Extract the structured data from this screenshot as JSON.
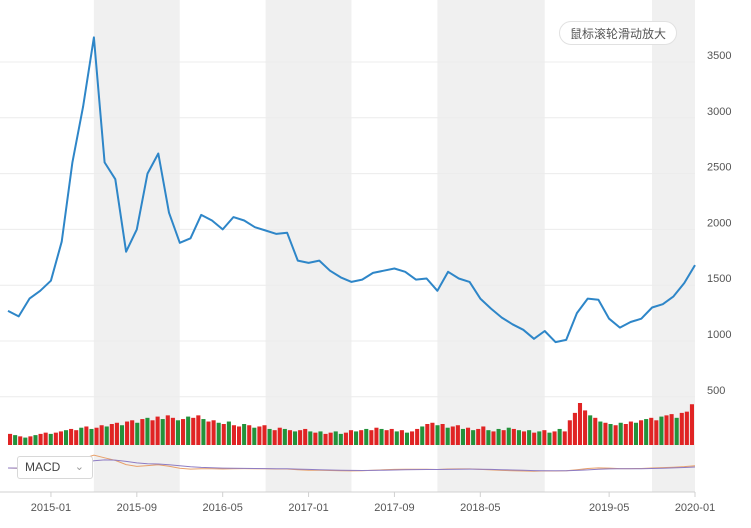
{
  "zoom_hint": "鼠标滚轮滑动放大",
  "indicator": {
    "selected": "MACD",
    "chevron_icon": "chevron-down-icon"
  },
  "colors": {
    "price_line": "#2e86c8",
    "up_volume": "#e02424",
    "down_volume": "#23923b",
    "band": "#f0f0f0",
    "grid": "#ececec",
    "axis_text": "#555555"
  },
  "chart_data": {
    "type": "line",
    "series": [
      {
        "values": [
          {
            "x": "2014-09",
            "y": 1270
          },
          {
            "x": "2014-10",
            "y": 1220
          },
          {
            "x": "2014-11",
            "y": 1380
          },
          {
            "x": "2014-12",
            "y": 1450
          },
          {
            "x": "2015-01",
            "y": 1540
          },
          {
            "x": "2015-02",
            "y": 1890
          },
          {
            "x": "2015-03",
            "y": 2600
          },
          {
            "x": "2015-04",
            "y": 3100
          },
          {
            "x": "2015-05",
            "y": 3720
          },
          {
            "x": "2015-06",
            "y": 2600
          },
          {
            "x": "2015-07",
            "y": 2450
          },
          {
            "x": "2015-08",
            "y": 1800
          },
          {
            "x": "2015-09",
            "y": 2000
          },
          {
            "x": "2015-10",
            "y": 2500
          },
          {
            "x": "2015-11",
            "y": 2680
          },
          {
            "x": "2015-12",
            "y": 2150
          },
          {
            "x": "2016-01",
            "y": 1880
          },
          {
            "x": "2016-02",
            "y": 1920
          },
          {
            "x": "2016-03",
            "y": 2130
          },
          {
            "x": "2016-04",
            "y": 2080
          },
          {
            "x": "2016-05",
            "y": 2000
          },
          {
            "x": "2016-06",
            "y": 2110
          },
          {
            "x": "2016-07",
            "y": 2080
          },
          {
            "x": "2016-08",
            "y": 2020
          },
          {
            "x": "2016-09",
            "y": 1990
          },
          {
            "x": "2016-10",
            "y": 1960
          },
          {
            "x": "2016-11",
            "y": 1970
          },
          {
            "x": "2016-12",
            "y": 1720
          },
          {
            "x": "2017-01",
            "y": 1700
          },
          {
            "x": "2017-02",
            "y": 1720
          },
          {
            "x": "2017-03",
            "y": 1630
          },
          {
            "x": "2017-04",
            "y": 1570
          },
          {
            "x": "2017-05",
            "y": 1530
          },
          {
            "x": "2017-06",
            "y": 1550
          },
          {
            "x": "2017-07",
            "y": 1610
          },
          {
            "x": "2017-08",
            "y": 1630
          },
          {
            "x": "2017-09",
            "y": 1650
          },
          {
            "x": "2017-10",
            "y": 1620
          },
          {
            "x": "2017-11",
            "y": 1550
          },
          {
            "x": "2017-12",
            "y": 1560
          },
          {
            "x": "2018-01",
            "y": 1450
          },
          {
            "x": "2018-02",
            "y": 1620
          },
          {
            "x": "2018-03",
            "y": 1560
          },
          {
            "x": "2018-04",
            "y": 1530
          },
          {
            "x": "2018-05",
            "y": 1380
          },
          {
            "x": "2018-06",
            "y": 1290
          },
          {
            "x": "2018-07",
            "y": 1210
          },
          {
            "x": "2018-08",
            "y": 1150
          },
          {
            "x": "2018-09",
            "y": 1100
          },
          {
            "x": "2018-10",
            "y": 1020
          },
          {
            "x": "2018-11",
            "y": 1090
          },
          {
            "x": "2018-12",
            "y": 990
          },
          {
            "x": "2019-01",
            "y": 1010
          },
          {
            "x": "2019-02",
            "y": 1250
          },
          {
            "x": "2019-03",
            "y": 1380
          },
          {
            "x": "2019-04",
            "y": 1370
          },
          {
            "x": "2019-05",
            "y": 1200
          },
          {
            "x": "2019-06",
            "y": 1120
          },
          {
            "x": "2019-07",
            "y": 1170
          },
          {
            "x": "2019-08",
            "y": 1200
          },
          {
            "x": "2019-09",
            "y": 1300
          },
          {
            "x": "2019-10",
            "y": 1330
          },
          {
            "x": "2019-11",
            "y": 1400
          },
          {
            "x": "2019-12",
            "y": 1520
          },
          {
            "x": "2020-01",
            "y": 1680
          }
        ]
      }
    ],
    "y_ticks": [
      "500",
      "1000",
      "1500",
      "2000",
      "2500",
      "3000",
      "3500"
    ],
    "x_ticks": [
      "2015-01",
      "2015-09",
      "2016-05",
      "2017-01",
      "2017-09",
      "2018-05",
      "2019-05",
      "2020-01"
    ],
    "ylim": [
      0,
      3800
    ],
    "grid": true,
    "volume": [
      [
        9,
        "u"
      ],
      [
        8,
        "d"
      ],
      [
        7,
        "u"
      ],
      [
        6,
        "d"
      ],
      [
        7,
        "u"
      ],
      [
        8,
        "d"
      ],
      [
        9,
        "u"
      ],
      [
        10,
        "u"
      ],
      [
        9,
        "d"
      ],
      [
        10,
        "u"
      ],
      [
        11,
        "u"
      ],
      [
        12,
        "d"
      ],
      [
        13,
        "u"
      ],
      [
        12,
        "u"
      ],
      [
        14,
        "d"
      ],
      [
        15,
        "u"
      ],
      [
        13,
        "d"
      ],
      [
        14,
        "u"
      ],
      [
        16,
        "u"
      ],
      [
        15,
        "d"
      ],
      [
        17,
        "u"
      ],
      [
        18,
        "u"
      ],
      [
        16,
        "d"
      ],
      [
        19,
        "u"
      ],
      [
        20,
        "u"
      ],
      [
        18,
        "d"
      ],
      [
        21,
        "u"
      ],
      [
        22,
        "d"
      ],
      [
        20,
        "u"
      ],
      [
        23,
        "u"
      ],
      [
        21,
        "d"
      ],
      [
        24,
        "u"
      ],
      [
        22,
        "u"
      ],
      [
        20,
        "d"
      ],
      [
        21,
        "u"
      ],
      [
        23,
        "d"
      ],
      [
        22,
        "u"
      ],
      [
        24,
        "u"
      ],
      [
        21,
        "d"
      ],
      [
        19,
        "u"
      ],
      [
        20,
        "u"
      ],
      [
        18,
        "d"
      ],
      [
        17,
        "u"
      ],
      [
        19,
        "d"
      ],
      [
        16,
        "u"
      ],
      [
        15,
        "u"
      ],
      [
        17,
        "d"
      ],
      [
        16,
        "u"
      ],
      [
        14,
        "d"
      ],
      [
        15,
        "u"
      ],
      [
        16,
        "u"
      ],
      [
        13,
        "d"
      ],
      [
        12,
        "u"
      ],
      [
        14,
        "u"
      ],
      [
        13,
        "d"
      ],
      [
        12,
        "u"
      ],
      [
        11,
        "d"
      ],
      [
        12,
        "u"
      ],
      [
        13,
        "u"
      ],
      [
        11,
        "d"
      ],
      [
        10,
        "u"
      ],
      [
        11,
        "d"
      ],
      [
        9,
        "u"
      ],
      [
        10,
        "u"
      ],
      [
        11,
        "d"
      ],
      [
        9,
        "d"
      ],
      [
        10,
        "u"
      ],
      [
        12,
        "u"
      ],
      [
        11,
        "d"
      ],
      [
        12,
        "u"
      ],
      [
        13,
        "d"
      ],
      [
        12,
        "u"
      ],
      [
        14,
        "u"
      ],
      [
        13,
        "d"
      ],
      [
        12,
        "u"
      ],
      [
        13,
        "u"
      ],
      [
        11,
        "d"
      ],
      [
        12,
        "u"
      ],
      [
        10,
        "d"
      ],
      [
        11,
        "u"
      ],
      [
        13,
        "u"
      ],
      [
        15,
        "d"
      ],
      [
        17,
        "u"
      ],
      [
        18,
        "u"
      ],
      [
        16,
        "d"
      ],
      [
        17,
        "u"
      ],
      [
        14,
        "d"
      ],
      [
        15,
        "u"
      ],
      [
        16,
        "u"
      ],
      [
        13,
        "d"
      ],
      [
        14,
        "u"
      ],
      [
        12,
        "d"
      ],
      [
        13,
        "u"
      ],
      [
        15,
        "u"
      ],
      [
        12,
        "d"
      ],
      [
        11,
        "u"
      ],
      [
        13,
        "d"
      ],
      [
        12,
        "u"
      ],
      [
        14,
        "d"
      ],
      [
        13,
        "u"
      ],
      [
        12,
        "d"
      ],
      [
        11,
        "u"
      ],
      [
        12,
        "d"
      ],
      [
        10,
        "u"
      ],
      [
        11,
        "d"
      ],
      [
        12,
        "u"
      ],
      [
        10,
        "d"
      ],
      [
        11,
        "u"
      ],
      [
        13,
        "d"
      ],
      [
        11,
        "u"
      ],
      [
        20,
        "u"
      ],
      [
        26,
        "u"
      ],
      [
        34,
        "u"
      ],
      [
        28,
        "u"
      ],
      [
        24,
        "d"
      ],
      [
        22,
        "u"
      ],
      [
        19,
        "d"
      ],
      [
        18,
        "u"
      ],
      [
        17,
        "d"
      ],
      [
        16,
        "u"
      ],
      [
        18,
        "d"
      ],
      [
        17,
        "u"
      ],
      [
        19,
        "u"
      ],
      [
        18,
        "d"
      ],
      [
        20,
        "u"
      ],
      [
        21,
        "d"
      ],
      [
        22,
        "u"
      ],
      [
        20,
        "u"
      ],
      [
        23,
        "d"
      ],
      [
        24,
        "u"
      ],
      [
        25,
        "u"
      ],
      [
        22,
        "d"
      ],
      [
        26,
        "u"
      ],
      [
        27,
        "u"
      ],
      [
        33,
        "u"
      ]
    ]
  }
}
